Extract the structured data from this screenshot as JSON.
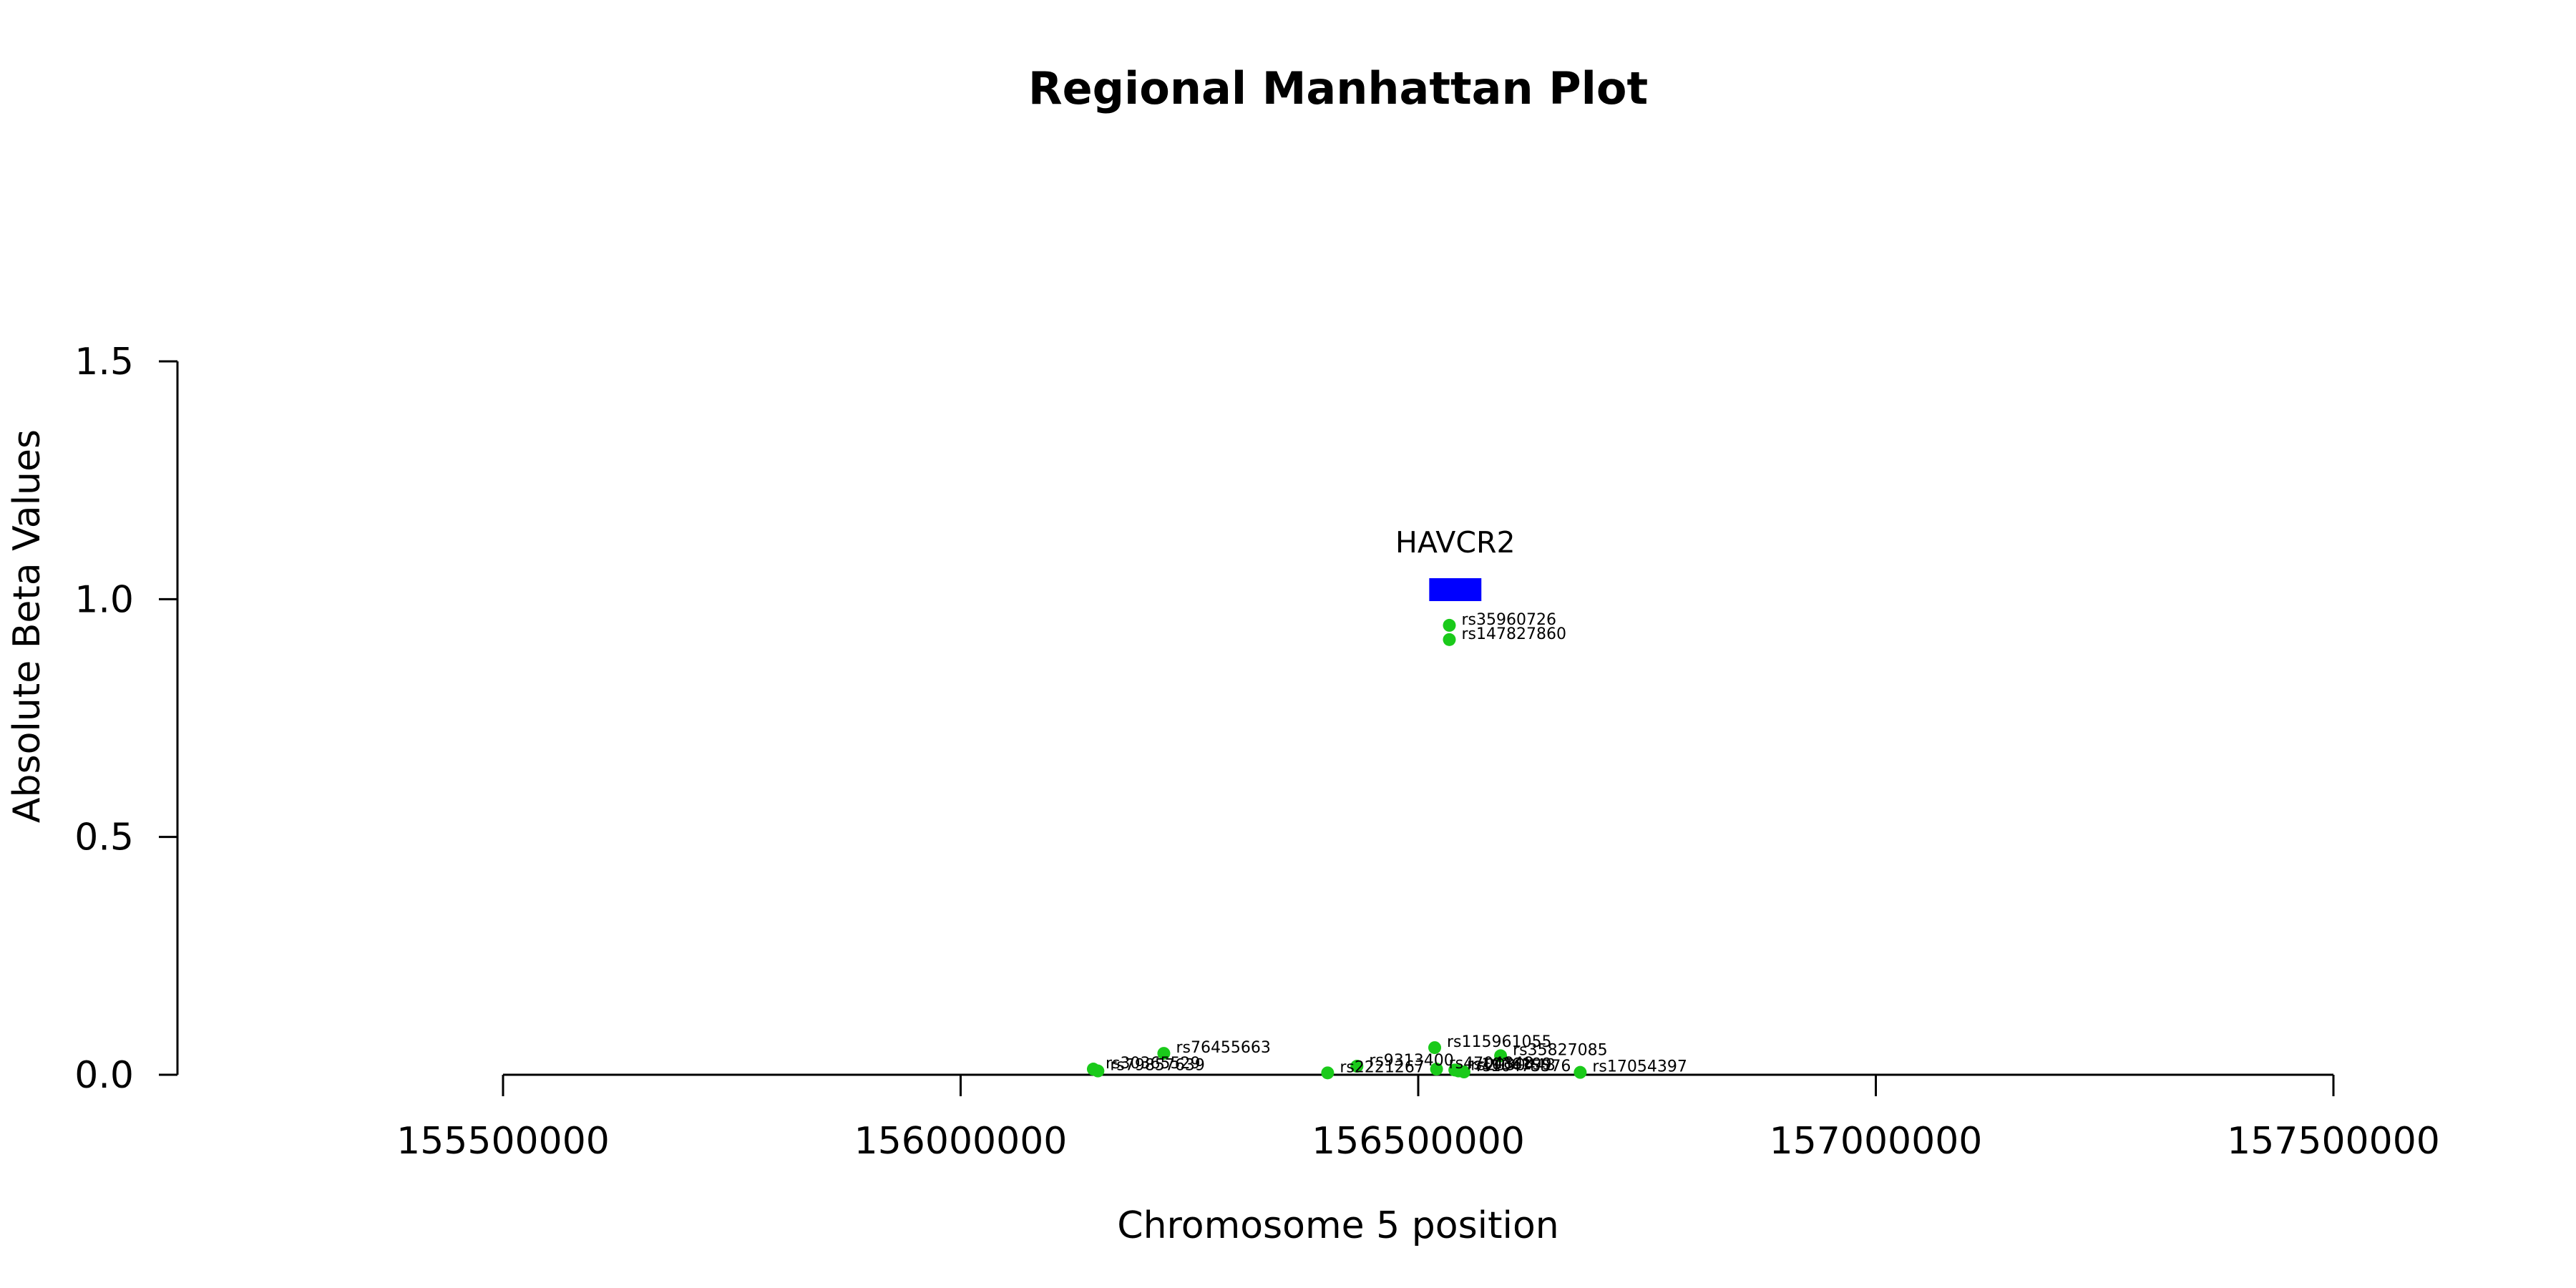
{
  "colors": {
    "snp_point": "#1aca1a",
    "gene_bar": "#0000ff",
    "axis": "#000000"
  },
  "chart_data": {
    "type": "scatter",
    "title": "Regional Manhattan Plot",
    "xlabel": "Chromosome 5 position",
    "ylabel": "Absolute Beta Values",
    "xlim": [
      155500000,
      157500000
    ],
    "ylim": [
      0,
      1.5
    ],
    "x_ticks": [
      155500000,
      156000000,
      156500000,
      157000000,
      157500000
    ],
    "x_tick_labels": [
      "155500000",
      "156000000",
      "156500000",
      "157000000",
      "157500000"
    ],
    "y_ticks": [
      0.0,
      0.5,
      1.0,
      1.5
    ],
    "y_tick_labels": [
      "0.0",
      "0.5",
      "1.0",
      "1.5"
    ],
    "grid": false,
    "genes": [
      {
        "name": "HAVCR2",
        "start": 156512000,
        "end": 156569000,
        "y": 1.02
      }
    ],
    "points": [
      {
        "label": "rs35960726",
        "x": 156534000,
        "y": 0.945
      },
      {
        "label": "rs147827860",
        "x": 156534000,
        "y": 0.915
      },
      {
        "label": "rs115961055",
        "x": 156518000,
        "y": 0.057
      },
      {
        "label": "rs76455663",
        "x": 156222000,
        "y": 0.045
      },
      {
        "label": "rs35827085",
        "x": 156590000,
        "y": 0.04
      },
      {
        "label": "rs9313400",
        "x": 156433000,
        "y": 0.018
      },
      {
        "label": "rs17054397",
        "x": 156677000,
        "y": 0.005
      },
      {
        "label": "rs2221267",
        "x": 156401000,
        "y": 0.004
      },
      {
        "label": "rs30365529",
        "x": 156145000,
        "y": 0.012
      },
      {
        "label": "rs79857639",
        "x": 156150000,
        "y": 0.008
      },
      {
        "label": "rs4704848",
        "x": 156520000,
        "y": 0.012
      },
      {
        "label": "rs1036199",
        "x": 156540000,
        "y": 0.01
      },
      {
        "label": "rs2030448",
        "x": 156544000,
        "y": 0.008
      },
      {
        "label": "rs10475576",
        "x": 156550000,
        "y": 0.006
      }
    ]
  }
}
